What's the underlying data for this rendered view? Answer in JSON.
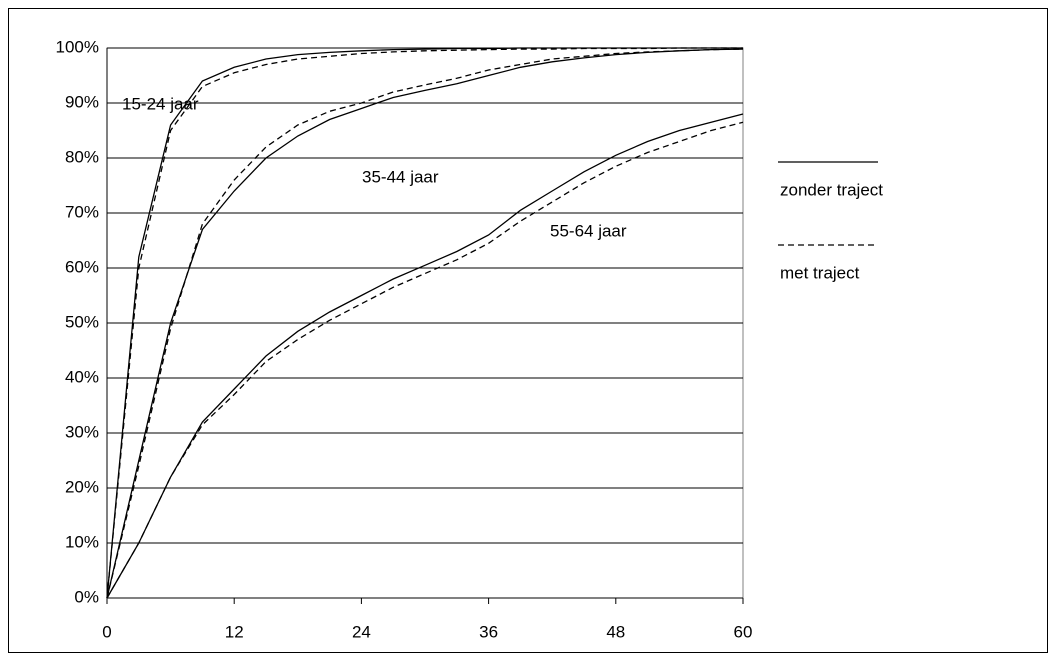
{
  "chart_data": {
    "type": "line",
    "x": [
      0,
      3,
      6,
      9,
      12,
      15,
      18,
      21,
      24,
      27,
      30,
      33,
      36,
      39,
      42,
      45,
      48,
      51,
      54,
      57,
      60
    ],
    "xlim": [
      0,
      60
    ],
    "xticks": [
      0,
      12,
      24,
      36,
      48,
      60
    ],
    "ylim": [
      0,
      100
    ],
    "yticks": [
      {
        "value": 0,
        "label": "0%"
      },
      {
        "value": 10,
        "label": "10%"
      },
      {
        "value": 20,
        "label": "20%"
      },
      {
        "value": 30,
        "label": "30%"
      },
      {
        "value": 40,
        "label": "40%"
      },
      {
        "value": 50,
        "label": "50%"
      },
      {
        "value": 60,
        "label": "60%"
      },
      {
        "value": 70,
        "label": "70%"
      },
      {
        "value": 80,
        "label": "80%"
      },
      {
        "value": 90,
        "label": "90%"
      },
      {
        "value": 100,
        "label": "100%"
      }
    ],
    "grid": true,
    "color": "#000000",
    "legend_position": "right",
    "legend": [
      {
        "name": "zonder traject",
        "dash": false
      },
      {
        "name": "met traject",
        "dash": true
      }
    ],
    "groups": [
      {
        "label": "15-24 jaar",
        "series": [
          {
            "values": [
              0,
              62,
              86,
              94,
              96.5,
              98,
              98.8,
              99.2,
              99.5,
              99.7,
              99.8,
              99.9,
              99.9,
              100,
              100,
              100,
              100,
              100,
              100,
              100,
              100
            ]
          },
          {
            "values": [
              0,
              60,
              85,
              93,
              95.5,
              97,
              98,
              98.5,
              99,
              99.3,
              99.5,
              99.6,
              99.7,
              99.8,
              99.8,
              99.9,
              99.9,
              99.9,
              100,
              100,
              100
            ]
          }
        ]
      },
      {
        "label": "35-44 jaar",
        "series": [
          {
            "values": [
              0,
              25,
              50,
              67,
              74,
              80,
              84,
              87,
              89,
              91,
              92.3,
              93.5,
              95,
              96.5,
              97.5,
              98.2,
              98.8,
              99.2,
              99.5,
              99.7,
              99.8
            ]
          },
          {
            "values": [
              0,
              24,
              49,
              68,
              76,
              82,
              86,
              88.5,
              90,
              92,
              93.3,
              94.5,
              96,
              97,
              98,
              98.5,
              99,
              99.3,
              99.5,
              99.7,
              99.8
            ]
          }
        ]
      },
      {
        "label": "55-64 jaar",
        "series": [
          {
            "values": [
              0,
              10,
              22,
              32,
              38,
              44,
              48.5,
              52,
              55,
              58,
              60.5,
              63,
              66,
              70.5,
              74,
              77.5,
              80.5,
              83,
              85,
              86.5,
              88
            ]
          },
          {
            "values": [
              0,
              10,
              22,
              31.5,
              37,
              43,
              47,
              50.5,
              53.5,
              56.5,
              59,
              61.5,
              64.5,
              68.5,
              72,
              75.5,
              78.5,
              81,
              83,
              85,
              86.5
            ]
          }
        ]
      }
    ]
  }
}
